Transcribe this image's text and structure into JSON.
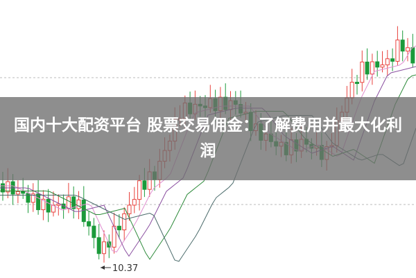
{
  "title": "国内十大配资平台 股票交易佣金：了解费用并最大化利润",
  "low_label": "10.37"
}
